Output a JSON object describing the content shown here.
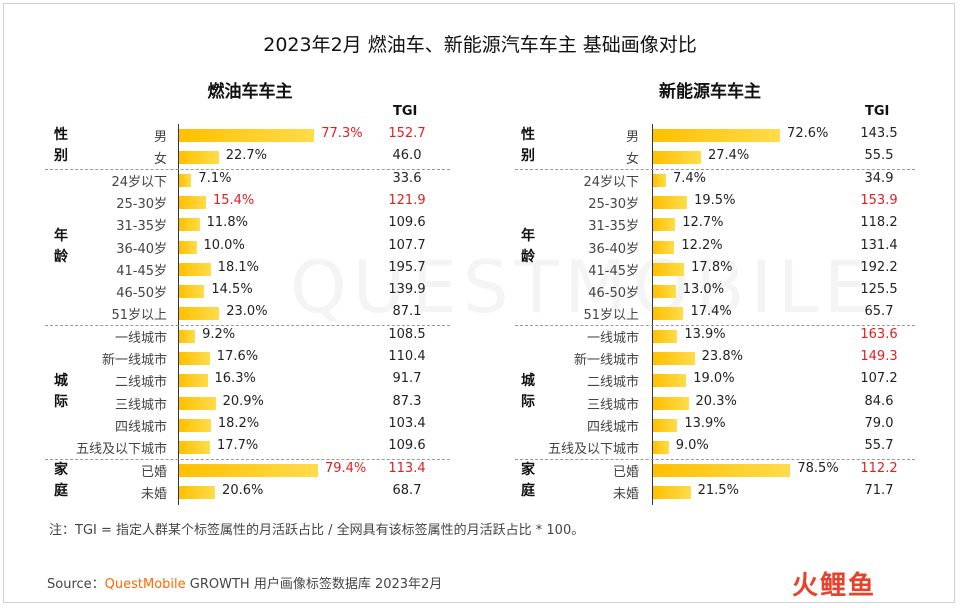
{
  "title": "2023年2月 燃油车、新能源汽车车主 基础画像对比",
  "tgi_header": "TGI",
  "watermark": "QUESTMOBILE",
  "note": "注：TGI = 指定人群某个标签属性的月活跃占比 / 全网具有该标签属性的月活跃占比 * 100。",
  "source": {
    "prefix": "Source：",
    "brand": "QuestMobile",
    "suffix": " GROWTH 用户画像标签数据库 2023年2月"
  },
  "logo": "火鲤鱼",
  "colors": {
    "bar": "#ffc000",
    "highlight": "#e02020"
  },
  "groups": [
    {
      "label": "性别",
      "size": 2
    },
    {
      "label": "年龄",
      "size": 7
    },
    {
      "label": "城际",
      "size": 6
    },
    {
      "label": "家庭",
      "size": 2
    }
  ],
  "chart_data": [
    {
      "type": "bar",
      "title": "燃油车车主",
      "categories": [
        "男",
        "女",
        "24岁以下",
        "25-30岁",
        "31-35岁",
        "36-40岁",
        "41-45岁",
        "46-50岁",
        "51岁以上",
        "一线城市",
        "新一线城市",
        "二线城市",
        "三线城市",
        "四线城市",
        "五线及以下城市",
        "已婚",
        "未婚"
      ],
      "values": [
        77.3,
        22.7,
        7.1,
        15.4,
        11.8,
        10.0,
        18.1,
        14.5,
        23.0,
        9.2,
        17.6,
        16.3,
        20.9,
        18.2,
        17.7,
        79.4,
        20.6
      ],
      "labels": [
        "77.3%",
        "22.7%",
        "7.1%",
        "15.4%",
        "11.8%",
        "10.0%",
        "18.1%",
        "14.5%",
        "23.0%",
        "9.2%",
        "17.6%",
        "16.3%",
        "20.9%",
        "18.2%",
        "17.7%",
        "79.4%",
        "20.6%"
      ],
      "tgi": [
        "152.7",
        "46.0",
        "33.6",
        "121.9",
        "109.6",
        "107.7",
        "195.7",
        "139.9",
        "87.1",
        "108.5",
        "110.4",
        "91.7",
        "87.3",
        "103.4",
        "109.6",
        "113.4",
        "68.7"
      ],
      "highlight": [
        true,
        false,
        false,
        true,
        false,
        false,
        false,
        false,
        false,
        false,
        false,
        false,
        false,
        false,
        false,
        true,
        false
      ]
    },
    {
      "type": "bar",
      "title": "新能源车车主",
      "categories": [
        "男",
        "女",
        "24岁以下",
        "25-30岁",
        "31-35岁",
        "36-40岁",
        "41-45岁",
        "46-50岁",
        "51岁以上",
        "一线城市",
        "新一线城市",
        "二线城市",
        "三线城市",
        "四线城市",
        "五线及以下城市",
        "已婚",
        "未婚"
      ],
      "values": [
        72.6,
        27.4,
        7.4,
        19.5,
        12.7,
        12.2,
        17.8,
        13.0,
        17.4,
        13.9,
        23.8,
        19.0,
        20.3,
        13.9,
        9.0,
        78.5,
        21.5
      ],
      "labels": [
        "72.6%",
        "27.4%",
        "7.4%",
        "19.5%",
        "12.7%",
        "12.2%",
        "17.8%",
        "13.0%",
        "17.4%",
        "13.9%",
        "23.8%",
        "19.0%",
        "20.3%",
        "13.9%",
        "9.0%",
        "78.5%",
        "21.5%"
      ],
      "tgi": [
        "143.5",
        "55.5",
        "34.9",
        "153.9",
        "118.2",
        "131.4",
        "192.2",
        "125.5",
        "65.7",
        "163.6",
        "149.3",
        "107.2",
        "84.6",
        "79.0",
        "55.7",
        "112.2",
        "71.7"
      ],
      "highlight": [
        false,
        false,
        false,
        true,
        false,
        false,
        false,
        false,
        false,
        true,
        true,
        false,
        false,
        false,
        false,
        true,
        false
      ]
    }
  ]
}
